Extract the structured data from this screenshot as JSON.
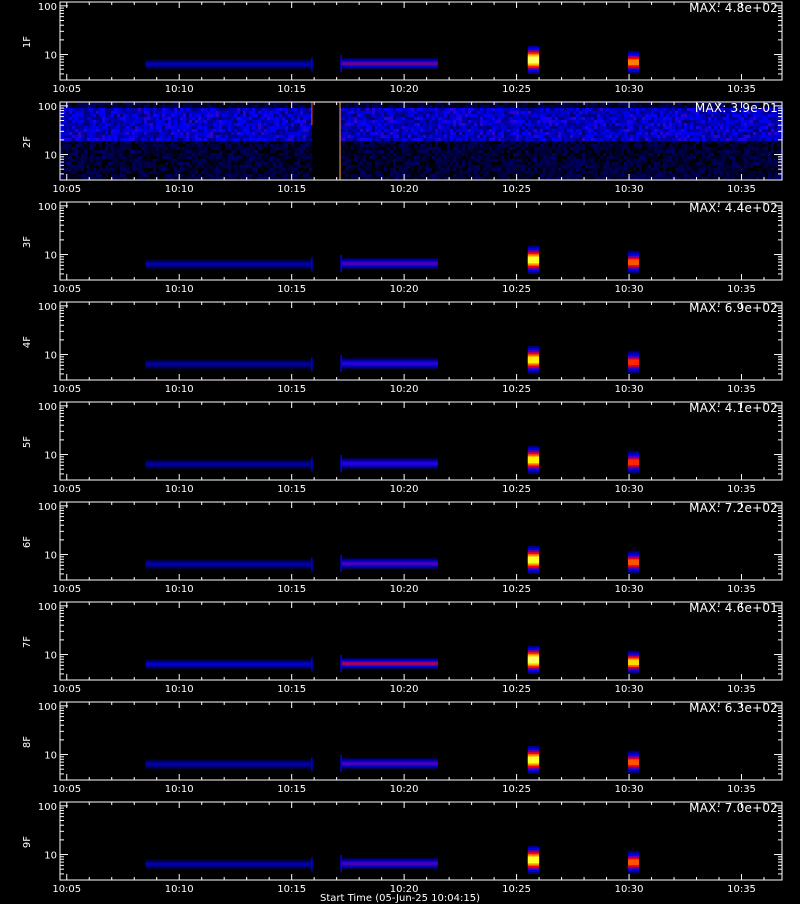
{
  "chart_data": {
    "type": "heatmap",
    "time_ticks": [
      "10:05",
      "10:10",
      "10:15",
      "10:20",
      "10:25",
      "10:30",
      "10:35"
    ],
    "time_tick_minutes": [
      5,
      10,
      15,
      20,
      25,
      30,
      35
    ],
    "xlim_minutes": [
      4.7,
      36.8
    ],
    "ylim": [
      3,
      120
    ],
    "yscale": "log",
    "y_ticks": [
      "10",
      "100"
    ],
    "y_tick_values": [
      10,
      100
    ],
    "colormap": [
      "#000000",
      "#000066",
      "#0000ff",
      "#ff0000",
      "#ffff00",
      "#ffffff"
    ],
    "panels": [
      {
        "name": "1F",
        "max_label": "MAX: 4.8e+02",
        "intensity": 1.0
      },
      {
        "name": "2F",
        "max_label": "MAX: 3.9e-01",
        "intensity": 1.0,
        "noisy": true
      },
      {
        "name": "3F",
        "max_label": "MAX: 4.4e+02",
        "intensity": 0.95
      },
      {
        "name": "4F",
        "max_label": "MAX: 6.9e+02",
        "intensity": 0.9
      },
      {
        "name": "5F",
        "max_label": "MAX: 4.1e+02",
        "intensity": 0.9
      },
      {
        "name": "6F",
        "max_label": "MAX: 7.2e+02",
        "intensity": 0.95
      },
      {
        "name": "7F",
        "max_label": "MAX: 4.6e+01",
        "intensity": 1.1
      },
      {
        "name": "8F",
        "max_label": "MAX: 6.3e+02",
        "intensity": 0.95
      },
      {
        "name": "9F",
        "max_label": "MAX: 7.0e+02",
        "intensity": 0.95
      }
    ],
    "bursts": [
      {
        "start_min": 8.5,
        "end_min": 15.9,
        "y_low": 5,
        "y_high": 8,
        "level": 0.35
      },
      {
        "start_min": 17.2,
        "end_min": 21.5,
        "y_low": 5,
        "y_high": 8.5,
        "level": 0.55
      },
      {
        "start_min": 25.5,
        "end_min": 26.0,
        "y_low": 4,
        "y_high": 15,
        "level": 1.0
      },
      {
        "start_min": 30.0,
        "end_min": 30.4,
        "y_low": 4,
        "y_high": 12,
        "level": 0.8
      }
    ],
    "x_title": "Start Time (05-Jun-25 10:04:15)"
  }
}
